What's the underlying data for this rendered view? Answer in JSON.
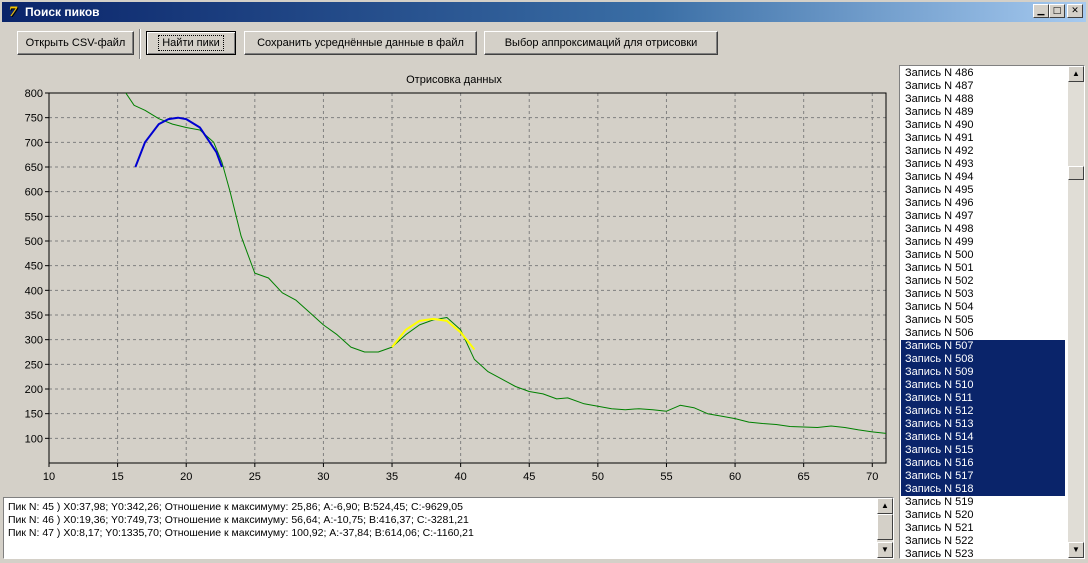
{
  "window": {
    "title": "Поиск пиков",
    "icon": "app-icon",
    "buttons": [
      "minimize-icon",
      "maximize-icon",
      "close-icon"
    ]
  },
  "toolbar": {
    "open_label": "Открыть CSV-файл",
    "find_label": "Найти пики",
    "save_label": "Сохранить усреднённые данные в файл",
    "approx_label": "Выбор аппроксимаций для отрисовки"
  },
  "chart_data": {
    "type": "line",
    "title": "Отрисовка данных",
    "xlabel": "",
    "ylabel": "",
    "xlim": [
      10,
      71
    ],
    "ylim": [
      50,
      800
    ],
    "grid": true,
    "x_ticks": [
      10,
      15,
      20,
      25,
      30,
      35,
      40,
      45,
      50,
      55,
      60,
      65,
      70
    ],
    "y_ticks": [
      100,
      150,
      200,
      250,
      300,
      350,
      400,
      450,
      500,
      550,
      600,
      650,
      700,
      750,
      800
    ],
    "series": [
      {
        "color": "#008000",
        "x": [
          15.6,
          16.2,
          17.0,
          18.0,
          19.0,
          20.0,
          21.0,
          22.0,
          22.6,
          23.2,
          24.0,
          25.0,
          26.0,
          27.0,
          28.0,
          29.0,
          30.0,
          31.0,
          32.0,
          33.0,
          34.0,
          35.0,
          36.0,
          37.0,
          38.0,
          39.0,
          40.0,
          41.0,
          42.0,
          43.0,
          44.0,
          45.0,
          46.0,
          47.0,
          47.8,
          49.0,
          50.0,
          51.0,
          52.0,
          53.0,
          54.0,
          55.0,
          56.0,
          57.0,
          58.0,
          59.0,
          60.0,
          61.0,
          62.0,
          63.0,
          64.0,
          65.0,
          66.0,
          67.0,
          68.0,
          69.0,
          70.0,
          71.0
        ],
        "y": [
          800,
          775,
          765,
          748,
          737,
          730,
          725,
          700,
          660,
          600,
          510,
          435,
          425,
          395,
          380,
          355,
          330,
          310,
          285,
          275,
          275,
          285,
          310,
          330,
          340,
          345,
          320,
          260,
          235,
          220,
          205,
          195,
          190,
          180,
          182,
          170,
          165,
          160,
          158,
          160,
          158,
          155,
          167,
          162,
          150,
          145,
          140,
          133,
          130,
          128,
          124,
          123,
          122,
          125,
          122,
          117,
          113,
          110
        ]
      },
      {
        "color": "#0000d0",
        "x": [
          16.3,
          17.0,
          18.0,
          18.7,
          19.4,
          20.0,
          21.0,
          22.2,
          22.6
        ],
        "y": [
          650,
          700,
          737,
          747,
          750,
          747,
          730,
          680,
          650
        ]
      },
      {
        "color": "#ffff00",
        "x": [
          35.0,
          36.0,
          37.0,
          38.0,
          39.0,
          40.0,
          41.0
        ],
        "y": [
          285,
          320,
          338,
          342,
          338,
          315,
          280
        ]
      }
    ]
  },
  "log": {
    "lines": [
      "Пик N: 45 ) X0:37,98; Y0:342,26; Отношение к максимуму: 25,86; A:-6,90; B:524,45; C:-9629,05",
      "Пик N: 46 ) X0:19,36; Y0:749,73; Отношение к максимуму: 56,64; A:-10,75; B:416,37; C:-3281,21",
      "Пик N: 47 ) X0:8,17; Y0:1335,70; Отношение к максимуму: 100,92; A:-37,84; B:614,06; C:-1160,21"
    ]
  },
  "records": {
    "items": [
      {
        "label": "Запись N 486",
        "selected": false
      },
      {
        "label": "Запись N 487",
        "selected": false
      },
      {
        "label": "Запись N 488",
        "selected": false
      },
      {
        "label": "Запись N 489",
        "selected": false
      },
      {
        "label": "Запись N 490",
        "selected": false
      },
      {
        "label": "Запись N 491",
        "selected": false
      },
      {
        "label": "Запись N 492",
        "selected": false
      },
      {
        "label": "Запись N 493",
        "selected": false
      },
      {
        "label": "Запись N 494",
        "selected": false
      },
      {
        "label": "Запись N 495",
        "selected": false
      },
      {
        "label": "Запись N 496",
        "selected": false
      },
      {
        "label": "Запись N 497",
        "selected": false
      },
      {
        "label": "Запись N 498",
        "selected": false
      },
      {
        "label": "Запись N 499",
        "selected": false
      },
      {
        "label": "Запись N 500",
        "selected": false
      },
      {
        "label": "Запись N 501",
        "selected": false
      },
      {
        "label": "Запись N 502",
        "selected": false
      },
      {
        "label": "Запись N 503",
        "selected": false
      },
      {
        "label": "Запись N 504",
        "selected": false
      },
      {
        "label": "Запись N 505",
        "selected": false
      },
      {
        "label": "Запись N 506",
        "selected": false
      },
      {
        "label": "Запись N 507",
        "selected": true
      },
      {
        "label": "Запись N 508",
        "selected": true
      },
      {
        "label": "Запись N 509",
        "selected": true
      },
      {
        "label": "Запись N 510",
        "selected": true
      },
      {
        "label": "Запись N 511",
        "selected": true
      },
      {
        "label": "Запись N 512",
        "selected": true
      },
      {
        "label": "Запись N 513",
        "selected": true
      },
      {
        "label": "Запись N 514",
        "selected": true
      },
      {
        "label": "Запись N 515",
        "selected": true
      },
      {
        "label": "Запись N 516",
        "selected": true
      },
      {
        "label": "Запись N 517",
        "selected": true
      },
      {
        "label": "Запись N 518",
        "selected": true
      },
      {
        "label": "Запись N 519",
        "selected": false
      },
      {
        "label": "Запись N 520",
        "selected": false
      },
      {
        "label": "Запись N 521",
        "selected": false
      },
      {
        "label": "Запись N 522",
        "selected": false
      },
      {
        "label": "Запись N 523",
        "selected": false
      }
    ]
  }
}
